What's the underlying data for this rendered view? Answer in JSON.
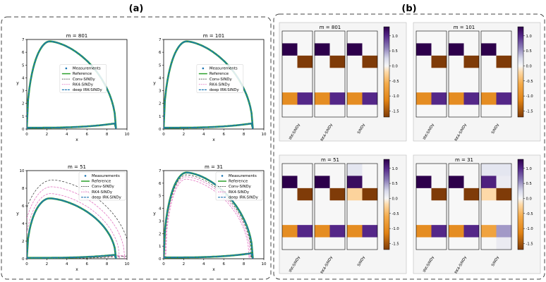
{
  "panel_labels": {
    "a": "(a)",
    "b": "(b)"
  },
  "colors": {
    "measurements": "#1f77b4",
    "reference": "#2ca02c",
    "conv": "#17becf",
    "rk4": "#e377c2",
    "deep": "#1f77b4",
    "cmap_pos": "#2d004b",
    "cmap_zero": "#f7f7f7",
    "cmap_neg": "#7f3b08",
    "dashed_box": "#444444"
  },
  "chart_data": [
    {
      "type": "line",
      "title": "m = 801",
      "xlabel": "x",
      "ylabel": "y",
      "xlim": [
        0,
        10
      ],
      "ylim": [
        0,
        7
      ],
      "xticks": [
        "0",
        "2",
        "4",
        "6",
        "8",
        "10"
      ],
      "yticks": [
        "0",
        "1",
        "2",
        "3",
        "4",
        "5",
        "6",
        "7"
      ],
      "legend": [
        "Measurements",
        "Reference",
        "Conv-SINDy",
        "RK4-SINDy",
        "deep IRK-SINDy"
      ],
      "legend_loc": "center",
      "limit_cycle": {
        "x_min": 0.0,
        "x_max": 8.9,
        "y_min": 0.05,
        "y_max": 6.85,
        "peak_x": 2.3
      },
      "rk4_offsets": [],
      "conv_offsets": []
    },
    {
      "type": "line",
      "title": "m = 101",
      "xlabel": "x",
      "ylabel": "y",
      "xlim": [
        0,
        10
      ],
      "ylim": [
        0,
        7
      ],
      "xticks": [
        "0",
        "2",
        "4",
        "6",
        "8",
        "10"
      ],
      "yticks": [
        "0",
        "1",
        "2",
        "3",
        "4",
        "5",
        "6",
        "7"
      ],
      "legend": [
        "Measurements",
        "Reference",
        "Conv-SINDy",
        "RK4-SINDy",
        "deep IRK-SINDy"
      ],
      "legend_loc": "center",
      "limit_cycle": {
        "x_min": 0.0,
        "x_max": 8.9,
        "y_min": 0.05,
        "y_max": 6.85,
        "peak_x": 2.3
      },
      "rk4_offsets": [],
      "conv_offsets": []
    },
    {
      "type": "line",
      "title": "m = 51",
      "xlabel": "x",
      "ylabel": "y",
      "xlim": [
        0,
        10
      ],
      "ylim": [
        0,
        10
      ],
      "xticks": [
        "0",
        "2",
        "4",
        "6",
        "8",
        "10"
      ],
      "yticks": [
        "0",
        "2",
        "4",
        "6",
        "8",
        "10"
      ],
      "legend": [
        "Measurements",
        "Reference",
        "Conv-SINDy",
        "RK4-SINDy",
        "deep IRK-SINDy"
      ],
      "legend_loc": "upper right",
      "limit_cycle": {
        "x_min": 0.0,
        "x_max": 8.9,
        "y_min": 0.05,
        "y_max": 6.85,
        "peak_x": 2.3
      },
      "rk4_offsets": [
        0.35,
        0.85
      ],
      "conv_offsets": [
        1.35
      ]
    },
    {
      "type": "line",
      "title": "m = 31",
      "xlabel": "x",
      "ylabel": "y",
      "xlim": [
        0,
        10
      ],
      "ylim": [
        0,
        7
      ],
      "xticks": [
        "0",
        "2",
        "4",
        "6",
        "8",
        "10"
      ],
      "yticks": [
        "0",
        "1",
        "2",
        "3",
        "4",
        "5",
        "6",
        "7"
      ],
      "legend": [
        "Measurements",
        "Reference",
        "Conv-SINDy",
        "RK4-SINDy",
        "deep IRK-SINDy"
      ],
      "legend_loc": "upper right",
      "limit_cycle": {
        "x_min": 0.0,
        "x_max": 8.9,
        "y_min": 0.05,
        "y_max": 6.85,
        "peak_x": 2.3
      },
      "rk4_offsets": [
        -0.22,
        -0.34
      ],
      "conv_offsets": [
        -0.12
      ]
    },
    {
      "type": "heatmap",
      "title": "m = 801",
      "methods": [
        "IRK-SINDy",
        "RK4-SINDy",
        "SINDy"
      ],
      "colorbar_ticks": [
        "1.0",
        "0.5",
        "0.0",
        "-0.5",
        "-1.0",
        "-1.5"
      ],
      "vmin": -1.7,
      "vmax": 1.3,
      "matrices": [
        [
          [
            0,
            0
          ],
          [
            1.3,
            0
          ],
          [
            0,
            -1.7
          ],
          [
            0,
            0
          ],
          [
            0,
            0
          ],
          [
            -1.0,
            1.0
          ],
          [
            0,
            0
          ]
        ],
        [
          [
            0,
            0
          ],
          [
            1.3,
            0
          ],
          [
            0,
            -1.7
          ],
          [
            0,
            0
          ],
          [
            0,
            0
          ],
          [
            -1.0,
            1.0
          ],
          [
            0,
            0
          ]
        ],
        [
          [
            0,
            0
          ],
          [
            1.3,
            0
          ],
          [
            0,
            -1.7
          ],
          [
            0,
            0
          ],
          [
            0,
            0
          ],
          [
            -1.0,
            1.0
          ],
          [
            0,
            0
          ]
        ]
      ]
    },
    {
      "type": "heatmap",
      "title": "m = 101",
      "methods": [
        "IRK-SINDy",
        "RK4-SINDy",
        "SINDy"
      ],
      "colorbar_ticks": [
        "1.0",
        "0.5",
        "0.0",
        "-0.5",
        "-1.0",
        "-1.5"
      ],
      "vmin": -1.7,
      "vmax": 1.3,
      "matrices": [
        [
          [
            0,
            0
          ],
          [
            1.3,
            0
          ],
          [
            0,
            -1.7
          ],
          [
            0,
            0
          ],
          [
            0,
            0
          ],
          [
            -1.0,
            1.0
          ],
          [
            0,
            0
          ]
        ],
        [
          [
            0,
            0
          ],
          [
            1.3,
            0
          ],
          [
            0,
            -1.7
          ],
          [
            0,
            0
          ],
          [
            0,
            0
          ],
          [
            -1.0,
            1.0
          ],
          [
            0,
            0
          ]
        ],
        [
          [
            0,
            0
          ],
          [
            1.3,
            0
          ],
          [
            0,
            -1.7
          ],
          [
            0,
            0
          ],
          [
            0,
            0
          ],
          [
            -1.0,
            1.0
          ],
          [
            0,
            0
          ]
        ]
      ]
    },
    {
      "type": "heatmap",
      "title": "m = 51",
      "methods": [
        "IRK-SINDy",
        "RK4-SINDy",
        "SINDy"
      ],
      "colorbar_ticks": [
        "1.0",
        "0.5",
        "0.0",
        "-0.5",
        "-1.0",
        "-1.5"
      ],
      "vmin": -1.7,
      "vmax": 1.3,
      "matrices": [
        [
          [
            0,
            0
          ],
          [
            1.3,
            0
          ],
          [
            0,
            -1.7
          ],
          [
            0,
            0
          ],
          [
            0,
            0
          ],
          [
            -1.0,
            1.0
          ],
          [
            0,
            0
          ]
        ],
        [
          [
            0,
            0
          ],
          [
            1.3,
            0
          ],
          [
            0,
            -1.7
          ],
          [
            0,
            0
          ],
          [
            0,
            0
          ],
          [
            -1.0,
            1.0
          ],
          [
            0,
            0
          ]
        ],
        [
          [
            0.15,
            0
          ],
          [
            1.2,
            0
          ],
          [
            -0.25,
            -1.7
          ],
          [
            0,
            0
          ],
          [
            0,
            0
          ],
          [
            -1.0,
            1.0
          ],
          [
            0,
            0
          ]
        ]
      ]
    },
    {
      "type": "heatmap",
      "title": "m = 31",
      "methods": [
        "IRK-SINDy",
        "RK4-SINDy",
        "SINDy"
      ],
      "colorbar_ticks": [
        "1.0",
        "0.5",
        "0.0",
        "-0.5",
        "-1.0",
        "-1.5"
      ],
      "vmin": -1.7,
      "vmax": 1.3,
      "matrices": [
        [
          [
            0,
            0
          ],
          [
            1.3,
            0
          ],
          [
            0,
            -1.7
          ],
          [
            0,
            0
          ],
          [
            0,
            0
          ],
          [
            -1.0,
            1.0
          ],
          [
            0,
            0
          ]
        ],
        [
          [
            0,
            0
          ],
          [
            1.3,
            0
          ],
          [
            0,
            -1.7
          ],
          [
            0,
            0
          ],
          [
            0,
            0
          ],
          [
            -1.0,
            1.0
          ],
          [
            0,
            0
          ]
        ],
        [
          [
            0.15,
            0.15
          ],
          [
            1.05,
            0.1
          ],
          [
            -0.2,
            -1.7
          ],
          [
            0,
            0
          ],
          [
            0,
            0
          ],
          [
            -0.7,
            0.5
          ],
          [
            0,
            0.1
          ]
        ]
      ]
    }
  ]
}
